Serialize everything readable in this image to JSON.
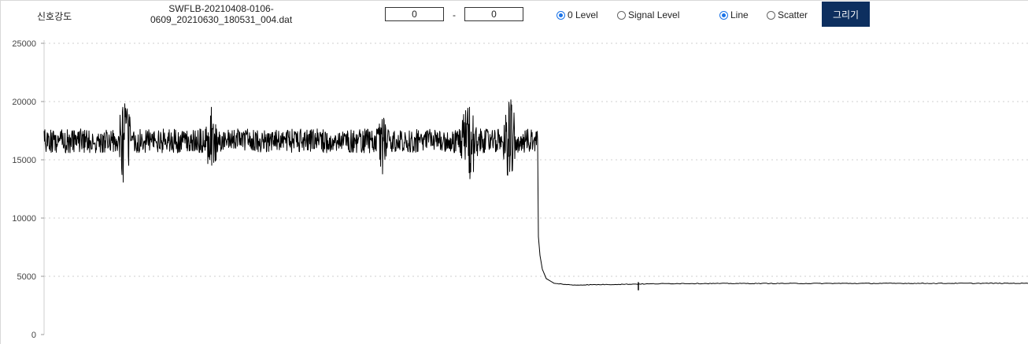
{
  "toolbar": {
    "label": "신호강도",
    "file_line1": "SWFLB-20210408-0106-",
    "file_line2": "0609_20210630_180531_004.dat",
    "range_from": "0",
    "range_separator": "-",
    "range_to": "0",
    "level_options": [
      {
        "label": "0 Level",
        "checked": true
      },
      {
        "label": "Signal Level",
        "checked": false
      }
    ],
    "plot_options": [
      {
        "label": "Line",
        "checked": true
      },
      {
        "label": "Scatter",
        "checked": false
      }
    ],
    "draw_label": "그리기",
    "accent_color": "#1a73e8",
    "button_color": "#0d2f5f"
  },
  "chart_data": {
    "type": "line",
    "title": "",
    "xlabel": "",
    "ylabel": "",
    "ylim": [
      0,
      25000
    ],
    "yticks": [
      "0",
      "5000",
      "10000",
      "15000",
      "20000",
      "25000"
    ],
    "grid": "horizontal-dotted",
    "line_color": "#000000",
    "x_range": [
      0,
      1250
    ],
    "drop_x": 627,
    "segments": [
      {
        "x_start": 0,
        "x_end": 627,
        "center": 16600,
        "noise": 1000
      },
      {
        "x_start": 627,
        "x_end": 1250,
        "center": 4350,
        "noise": 30
      }
    ],
    "bursts": [
      {
        "x": 102,
        "width": 10,
        "min": 12300,
        "max": 21300
      },
      {
        "x": 212,
        "width": 8,
        "min": 11900,
        "max": 20900
      },
      {
        "x": 430,
        "width": 8,
        "min": 11900,
        "max": 20500
      },
      {
        "x": 540,
        "width": 12,
        "min": 11700,
        "max": 20900
      },
      {
        "x": 592,
        "width": 10,
        "min": 11800,
        "max": 21200
      }
    ],
    "decay": [
      {
        "x": 627,
        "y": 16700
      },
      {
        "x": 628,
        "y": 8400
      },
      {
        "x": 630,
        "y": 6800
      },
      {
        "x": 633,
        "y": 5600
      },
      {
        "x": 638,
        "y": 4800
      },
      {
        "x": 648,
        "y": 4400
      },
      {
        "x": 670,
        "y": 4250
      },
      {
        "x": 720,
        "y": 4300
      },
      {
        "x": 800,
        "y": 4380
      },
      {
        "x": 1250,
        "y": 4400
      }
    ],
    "spike": {
      "x": 755,
      "min": 3800,
      "max": 4500
    }
  }
}
